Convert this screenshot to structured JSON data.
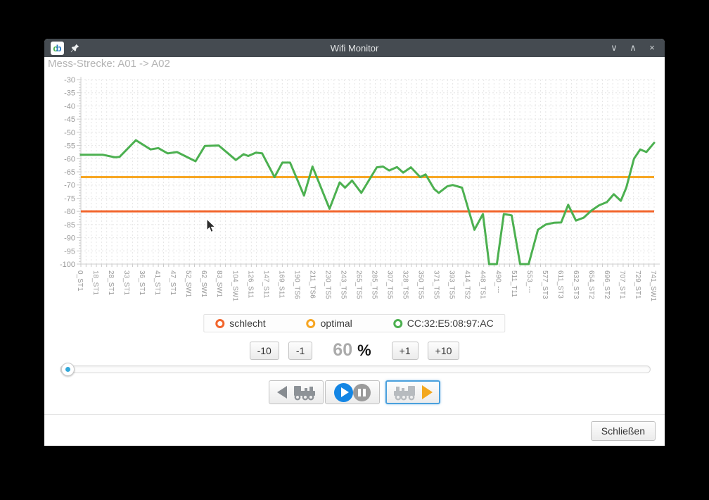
{
  "window": {
    "title": "Wifi Monitor",
    "logo_c": "c",
    "logo_b": "b",
    "minimize_glyph": "∨",
    "maximize_glyph": "∧",
    "close_glyph": "×"
  },
  "header": {
    "route": "Mess-Strecke: A01 -> A02"
  },
  "chart_data": {
    "type": "line",
    "title": "",
    "xlabel": "",
    "ylabel": "",
    "ylim": [
      -100,
      -30
    ],
    "ytick_step": 5,
    "grid": true,
    "legend_position": "bottom",
    "categories": [
      "0_ST1",
      "18_ST1",
      "28_ST1",
      "33_ST1",
      "36_ST1",
      "41_ST1",
      "47_ST1",
      "52_SW1",
      "62_SW1",
      "83_SW1",
      "104_SW1",
      "126_S11",
      "147_S11",
      "169_S11",
      "190_TS6",
      "211_TS6",
      "230_TS5",
      "243_TS5",
      "265_TS5",
      "285_TS5",
      "307_TS5",
      "328_TS5",
      "350_TS5",
      "371_TS5",
      "393_TS5",
      "414_TS2",
      "448_TS1",
      "490_---",
      "511_T11",
      "553_---",
      "577_ST3",
      "611_ST3",
      "632_ST3",
      "654_ST2",
      "696_ST2",
      "707_ST1",
      "729_ST1",
      "741_SW1"
    ],
    "series": [
      {
        "name": "schlecht",
        "kind": "threshold",
        "value": -80,
        "color": "#f2652c"
      },
      {
        "name": "optimal",
        "kind": "threshold",
        "value": -67,
        "color": "#f7a623"
      },
      {
        "name": "CC:32:E5:08:97:AC",
        "kind": "line",
        "color": "#4cb050",
        "values": [
          -58.5,
          -58.5,
          -59.5,
          -56,
          -54.5,
          -56,
          -57.5,
          -60,
          -55,
          -55,
          -60.5,
          -58.5,
          -62,
          -61.5,
          -69,
          -63,
          -79,
          -70.5,
          -72.5,
          -64,
          -64,
          -64.5,
          -67,
          -72.5,
          -70,
          -74,
          -83,
          -100,
          -86,
          -97,
          -85,
          -84,
          -83.5,
          -80,
          -76.5,
          -74,
          -57,
          -54
        ],
        "polyline": [
          [
            0,
            -58.5
          ],
          [
            1.4,
            -58.5
          ],
          [
            2.2,
            -59.5
          ],
          [
            2.5,
            -59.3
          ],
          [
            3.55,
            -53
          ],
          [
            4.5,
            -56.5
          ],
          [
            5.0,
            -56
          ],
          [
            5.6,
            -58
          ],
          [
            6.2,
            -57.5
          ],
          [
            7.4,
            -61
          ],
          [
            8.0,
            -55.2
          ],
          [
            8.9,
            -55
          ],
          [
            10.0,
            -60.5
          ],
          [
            10.5,
            -58.3
          ],
          [
            10.8,
            -59
          ],
          [
            11.3,
            -57.7
          ],
          [
            11.7,
            -58
          ],
          [
            12.5,
            -67
          ],
          [
            13.0,
            -61.5
          ],
          [
            13.5,
            -61.5
          ],
          [
            14.4,
            -74
          ],
          [
            14.95,
            -63
          ],
          [
            16.05,
            -79
          ],
          [
            16.7,
            -69
          ],
          [
            17.05,
            -71
          ],
          [
            17.5,
            -68.3
          ],
          [
            18.1,
            -73
          ],
          [
            19.1,
            -63.3
          ],
          [
            19.5,
            -63
          ],
          [
            19.9,
            -64.5
          ],
          [
            20.4,
            -63.2
          ],
          [
            20.8,
            -65.3
          ],
          [
            21.3,
            -63.3
          ],
          [
            21.9,
            -67
          ],
          [
            22.25,
            -66
          ],
          [
            22.8,
            -71.5
          ],
          [
            23.1,
            -73
          ],
          [
            23.65,
            -70.5
          ],
          [
            24.0,
            -70
          ],
          [
            24.6,
            -71
          ],
          [
            25.4,
            -87
          ],
          [
            25.95,
            -81
          ],
          [
            26.35,
            -100
          ],
          [
            26.85,
            -100
          ],
          [
            27.3,
            -81
          ],
          [
            27.8,
            -81.5
          ],
          [
            28.35,
            -100
          ],
          [
            28.9,
            -100
          ],
          [
            29.5,
            -87
          ],
          [
            30.0,
            -85
          ],
          [
            30.55,
            -84.3
          ],
          [
            31.0,
            -84.2
          ],
          [
            31.45,
            -77.5
          ],
          [
            31.95,
            -83.5
          ],
          [
            32.45,
            -82.4
          ],
          [
            32.95,
            -79.7
          ],
          [
            33.45,
            -77.7
          ],
          [
            33.95,
            -76.5
          ],
          [
            34.4,
            -73.5
          ],
          [
            34.85,
            -76
          ],
          [
            35.2,
            -71
          ],
          [
            35.7,
            -60
          ],
          [
            36.1,
            -56.5
          ],
          [
            36.5,
            -57.5
          ],
          [
            37,
            -54
          ]
        ]
      }
    ]
  },
  "controls": {
    "minus10": "-10",
    "minus1": "-1",
    "plus1": "+1",
    "plus10": "+10",
    "percent_value": "60",
    "percent_unit": "%",
    "slider_position": 0
  },
  "footer": {
    "close": "Schließen"
  }
}
